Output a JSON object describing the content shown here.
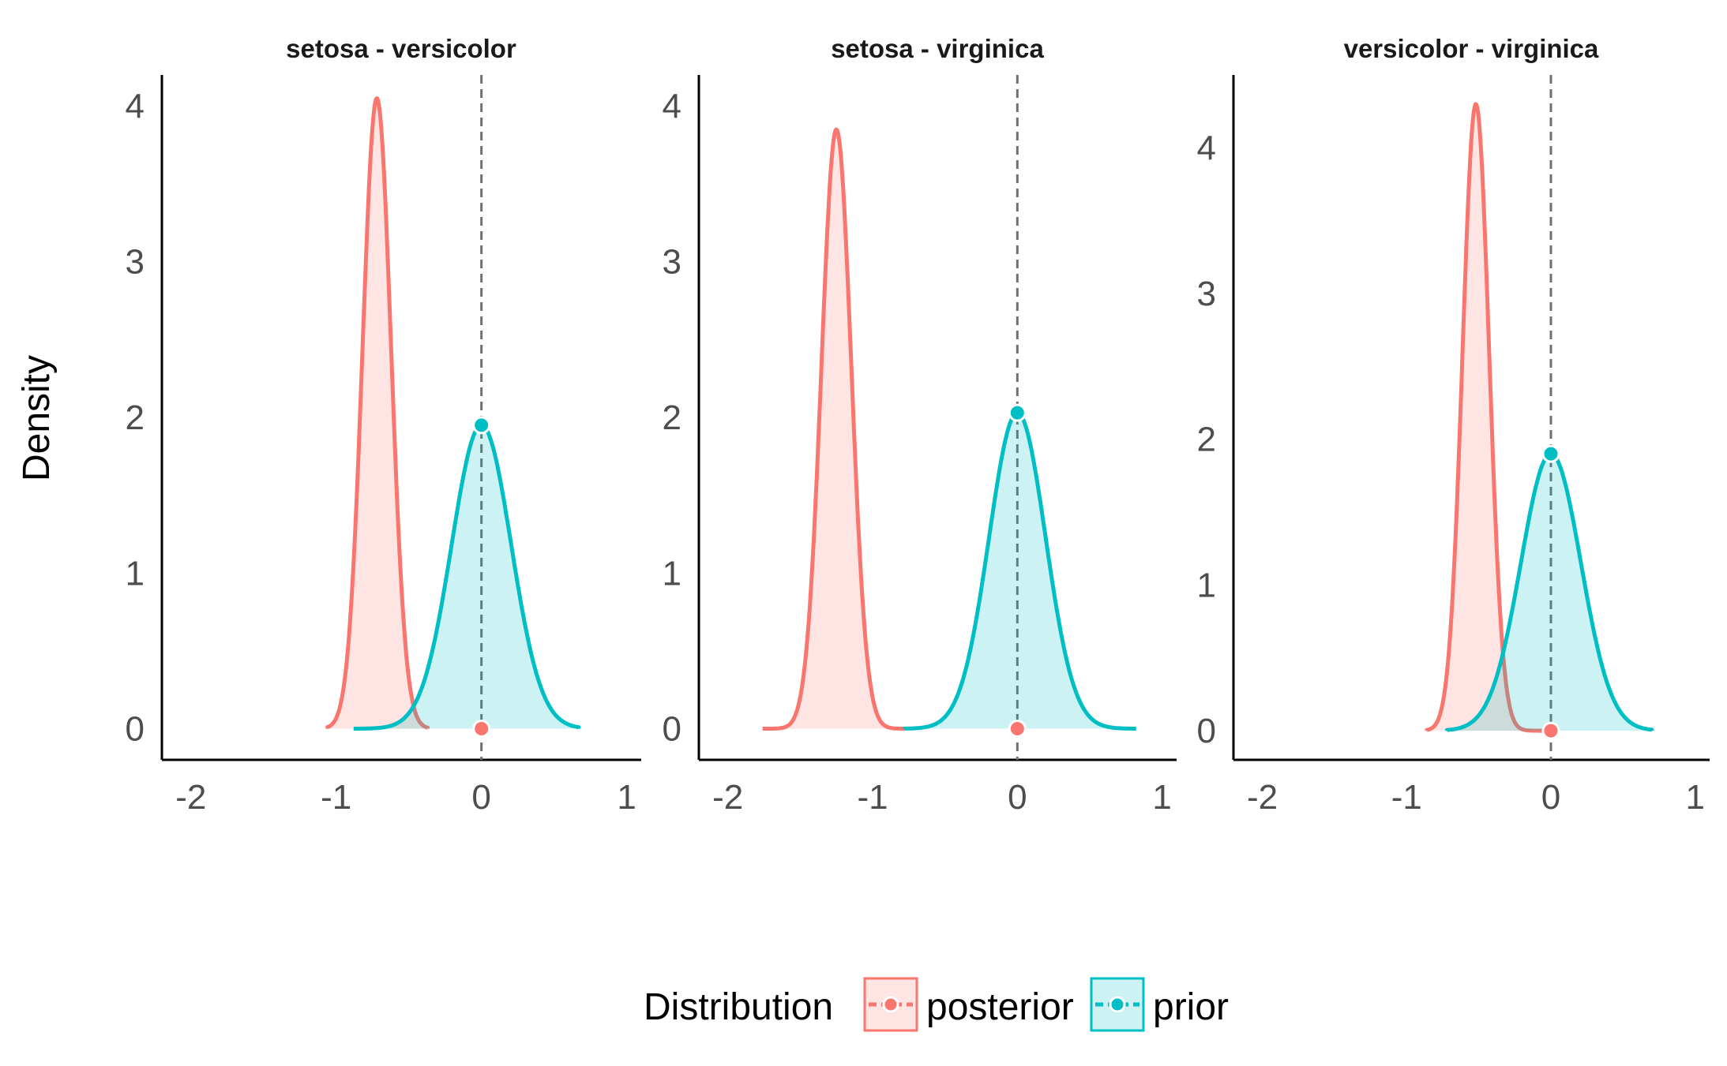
{
  "chart_data": {
    "type": "area",
    "ylabel": "Density",
    "xlabel": "",
    "x_ticks": [
      "-2",
      "-1",
      "0",
      "1"
    ],
    "reference_line_x": 0,
    "legend": {
      "title": "Distribution",
      "position": "bottom",
      "items": [
        {
          "label": "posterior",
          "color": "#F8766D"
        },
        {
          "label": "prior",
          "color": "#00BFC4"
        }
      ]
    },
    "panels": [
      {
        "title": "setosa - versicolor",
        "xlim": [
          -2.2,
          1.1
        ],
        "ylim": [
          -0.2,
          4.2
        ],
        "y_ticks": [
          "0",
          "1",
          "2",
          "3",
          "4"
        ],
        "series": [
          {
            "name": "posterior",
            "mean": -0.72,
            "sd": 0.098,
            "xmin": -1.06,
            "xmax": -0.37,
            "peak": 4.05,
            "density_at_zero": 0.0
          },
          {
            "name": "prior",
            "mean": 0.0,
            "sd": 0.205,
            "xmin": -0.88,
            "xmax": 0.67,
            "peak": 1.95,
            "density_at_zero": 1.95
          }
        ]
      },
      {
        "title": "setosa - virginica",
        "xlim": [
          -2.2,
          1.1
        ],
        "ylim": [
          -0.2,
          4.2
        ],
        "y_ticks": [
          "0",
          "1",
          "2",
          "3",
          "4"
        ],
        "series": [
          {
            "name": "posterior",
            "mean": -1.25,
            "sd": 0.103,
            "xmin": -1.76,
            "xmax": -0.78,
            "peak": 3.85,
            "density_at_zero": 0.0
          },
          {
            "name": "prior",
            "mean": 0.0,
            "sd": 0.195,
            "xmin": -0.78,
            "xmax": 0.82,
            "peak": 2.03,
            "density_at_zero": 2.03
          }
        ]
      },
      {
        "title": "versicolor - virginica",
        "xlim": [
          -2.2,
          1.1
        ],
        "ylim": [
          -0.2,
          4.5
        ],
        "y_ticks": [
          "0",
          "1",
          "2",
          "3",
          "4"
        ],
        "series": [
          {
            "name": "posterior",
            "mean": -0.52,
            "sd": 0.092,
            "xmin": -0.86,
            "xmax": 0.0,
            "peak": 4.3,
            "density_at_zero": 0.0
          },
          {
            "name": "prior",
            "mean": 0.0,
            "sd": 0.208,
            "xmin": -0.72,
            "xmax": 0.7,
            "peak": 1.9,
            "density_at_zero": 1.9
          }
        ]
      }
    ]
  }
}
